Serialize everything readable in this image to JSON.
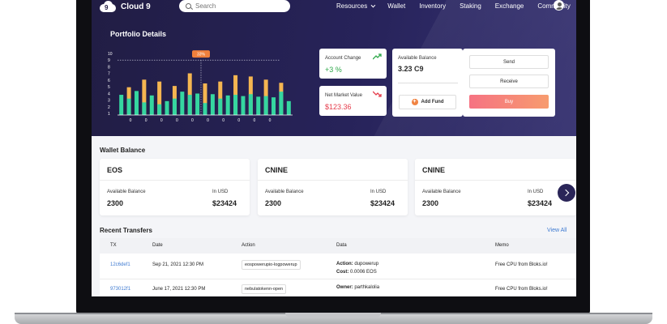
{
  "app": {
    "brand": "Cloud 9",
    "logo_glyph": "9"
  },
  "search": {
    "placeholder": "Search"
  },
  "nav": {
    "items": [
      "Resources",
      "Wallet",
      "Inventory",
      "Staking",
      "Exchange",
      "Community"
    ]
  },
  "portfolio": {
    "title": "Portfolio Details",
    "chart_data": {
      "type": "bar",
      "y_tick_labels": [
        "10",
        "9",
        "8",
        "7",
        "6",
        "5",
        "4",
        "3",
        "2",
        "1"
      ],
      "x_tick_labels": [
        "0",
        "0",
        "0",
        "0",
        "0",
        "0",
        "0",
        "0",
        "0",
        "0"
      ],
      "annotation": "33%",
      "annotation_y": 8.7,
      "ylim": [
        0,
        10
      ],
      "series": [
        {
          "color": "#35d6a0",
          "values": [
            3.2,
            2.6,
            3.8,
            2.0,
            3.1,
            1.7,
            2.2,
            2.6,
            3.7,
            3.2,
            3.4,
            1.9,
            3.3,
            2.6,
            3.1,
            3.2,
            3.0,
            3.3,
            2.9,
            3.0,
            2.8,
            3.7,
            2.2
          ]
        },
        {
          "color": "#f5b651",
          "values": [
            0,
            4.4,
            0,
            5.6,
            0,
            5.3,
            0,
            4.6,
            0,
            6.6,
            0,
            5.0,
            0,
            5.3,
            0,
            6.3,
            0,
            6.1,
            0,
            5.6,
            0,
            5.1,
            0
          ]
        }
      ]
    }
  },
  "account_change": {
    "label": "Account Change",
    "value": "+3 %",
    "trend_icon": "trend-up-icon",
    "color": "#2ea84a"
  },
  "net_market": {
    "label": "Net Market Value",
    "value": "$123.36",
    "trend_icon": "trend-down-icon",
    "color": "#e53b4a"
  },
  "available": {
    "label": "Available Balance",
    "value": "3.23 C9",
    "add_fund": "Add Fund"
  },
  "actions": {
    "send": "Send",
    "receive": "Receive",
    "buy": "Buy"
  },
  "wallet_balance": {
    "title": "Wallet Balance",
    "cards": [
      {
        "name": "EOS",
        "available_label": "Available Balance",
        "available": "2300",
        "usd_label": "In USD",
        "usd": "$23424"
      },
      {
        "name": "CNINE",
        "available_label": "Available Balance",
        "available": "2300",
        "usd_label": "In USD",
        "usd": "$23424"
      },
      {
        "name": "CNINE",
        "available_label": "Available Balance",
        "available": "2300",
        "usd_label": "In USD",
        "usd": "$23424"
      }
    ]
  },
  "recent_transfers": {
    "title": "Recent Transfers",
    "view_all": "View All",
    "columns": [
      "TX",
      "Date",
      "Action",
      "Data",
      "Memo"
    ],
    "rows": [
      {
        "tx": "12c6def1",
        "date": "Sep 21, 2021 12:30 PM",
        "action": "eospowerupio-logpowerup",
        "data_label1": "Action:",
        "data_val1": "dupowerup",
        "data_label2": "Cost:",
        "data_val2": "0.0006 EOS",
        "memo": "Free CPU from Bloks.io!"
      },
      {
        "tx": "973012f1",
        "date": "June 17, 2021 12:30 PM",
        "action": "nebulatokenn-open",
        "data_label1": "Owner:",
        "data_val1": "parthkalolia",
        "memo": "Free CPU from Bloks.io!"
      }
    ]
  }
}
